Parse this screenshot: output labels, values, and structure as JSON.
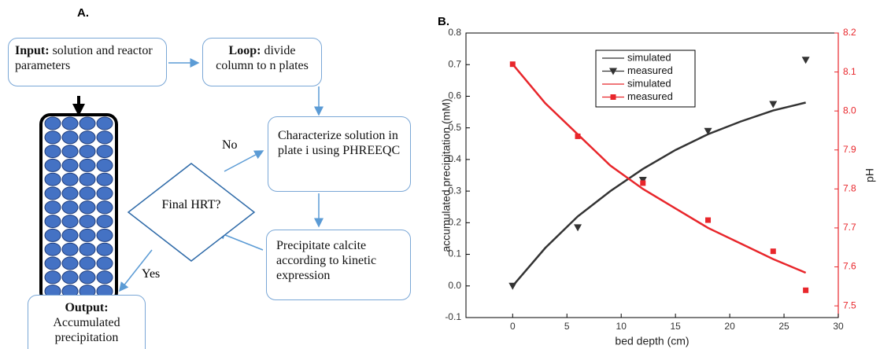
{
  "panel_a": {
    "label": "A.",
    "nodes": [
      {
        "title": "Input:",
        "text": "solution and reactor parameters"
      },
      {
        "title": "Loop:",
        "text": "divide column to n plates"
      },
      {
        "text": "Characterize solution in plate i using PHREEQC"
      },
      {
        "text": "Final HRT?"
      },
      {
        "text": "Precipitate calcite according to kinetic expression"
      },
      {
        "title": "Output:",
        "text": "Accumulated precipitation"
      }
    ],
    "edge_labels": [
      "No",
      "Yes"
    ]
  },
  "chart_data": {
    "type": "line",
    "panel_label": "B.",
    "x_label": "bed depth (cm)",
    "y_label": "accumulated precipitation (mM)",
    "y2_label": "pH",
    "xlim": [
      -4.3,
      30
    ],
    "xticks": [
      0,
      5,
      10,
      15,
      20,
      25,
      30
    ],
    "ylim": [
      -0.1,
      0.8
    ],
    "yticks": [
      -0.1,
      {
        "value": 0,
        "label": "0.0"
      },
      0.1,
      0.2,
      0.3,
      0.4,
      0.5,
      0.6,
      0.7,
      0.8
    ],
    "y2lim": [
      7.47,
      8.2
    ],
    "y2ticks": [
      7.5,
      7.6,
      7.7,
      7.8,
      7.9,
      {
        "value": 8,
        "label": "8.0"
      },
      8.1,
      8.2
    ],
    "y2_color": "#e8262b",
    "series": [
      {
        "name": "simulated",
        "color": "#333333",
        "style": "line",
        "x": [
          0,
          3,
          6,
          9,
          12,
          15,
          18,
          21,
          24,
          27
        ],
        "values": [
          0,
          0.12,
          0.22,
          0.3,
          0.37,
          0.43,
          0.48,
          0.52,
          0.555,
          0.58
        ]
      },
      {
        "name": "measured",
        "color": "#333333",
        "style": "triangle",
        "x": [
          0,
          6,
          12,
          18,
          24,
          27
        ],
        "values": [
          0,
          0.185,
          0.335,
          0.49,
          0.575,
          0.715
        ]
      },
      {
        "name": "simulated",
        "color": "#e8262b",
        "style": "line",
        "axis": "y2",
        "x": [
          0,
          3,
          6,
          9,
          12,
          15,
          18,
          21,
          24,
          27
        ],
        "values": [
          8.12,
          8.02,
          7.94,
          7.86,
          7.8,
          7.75,
          7.7,
          7.66,
          7.62,
          7.585
        ]
      },
      {
        "name": "measured",
        "color": "#e8262b",
        "style": "square",
        "axis": "y2",
        "x": [
          0,
          6,
          12,
          18,
          24,
          27
        ],
        "values": [
          8.12,
          7.935,
          7.815,
          7.72,
          7.64,
          7.54
        ]
      }
    ]
  }
}
